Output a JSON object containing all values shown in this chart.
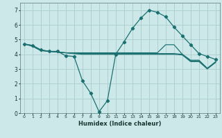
{
  "xlabel": "Humidex (Indice chaleur)",
  "xlim": [
    -0.5,
    23.5
  ],
  "ylim": [
    0,
    7.5
  ],
  "xticks": [
    0,
    1,
    2,
    3,
    4,
    5,
    6,
    7,
    8,
    9,
    10,
    11,
    12,
    13,
    14,
    15,
    16,
    17,
    18,
    19,
    20,
    21,
    22,
    23
  ],
  "yticks": [
    0,
    1,
    2,
    3,
    4,
    5,
    6,
    7
  ],
  "bg_color": "#cce8e8",
  "grid_color": "#aacccc",
  "line_color": "#1a7070",
  "line1_x": [
    0,
    1,
    2,
    3,
    4,
    5,
    6,
    7,
    8,
    9,
    10,
    11,
    12,
    13,
    14,
    15,
    16,
    17,
    18,
    19,
    20,
    21,
    22,
    23
  ],
  "line1_y": [
    4.7,
    4.6,
    4.3,
    4.2,
    4.2,
    3.9,
    3.85,
    2.2,
    1.35,
    0.1,
    0.85,
    4.0,
    4.85,
    5.75,
    6.45,
    7.0,
    6.85,
    6.55,
    5.85,
    5.25,
    4.65,
    4.05,
    3.85,
    3.65
  ],
  "line2_x": [
    0,
    1,
    2,
    3,
    4,
    5,
    6,
    7,
    8,
    9,
    10,
    11,
    12,
    13,
    14,
    15,
    16,
    17,
    18,
    19,
    20,
    21,
    22,
    23
  ],
  "line2_y": [
    4.7,
    4.6,
    4.3,
    4.2,
    4.15,
    4.1,
    4.1,
    4.1,
    4.1,
    4.1,
    4.1,
    4.1,
    4.1,
    4.1,
    4.1,
    4.1,
    4.1,
    4.65,
    4.65,
    4.0,
    3.6,
    3.6,
    3.05,
    3.5
  ],
  "line3_x": [
    0,
    1,
    2,
    3,
    4,
    5,
    6,
    7,
    8,
    9,
    10,
    11,
    12,
    13,
    14,
    15,
    16,
    17,
    18,
    19,
    20,
    21,
    22,
    23
  ],
  "line3_y": [
    4.7,
    4.55,
    4.25,
    4.2,
    4.15,
    4.1,
    4.05,
    4.05,
    4.05,
    4.05,
    4.05,
    4.05,
    4.05,
    4.05,
    4.05,
    4.05,
    4.05,
    4.05,
    4.05,
    4.0,
    3.55,
    3.55,
    3.05,
    3.45
  ],
  "line4_x": [
    0,
    1,
    2,
    3,
    4,
    5,
    6,
    7,
    8,
    9,
    10,
    11,
    12,
    13,
    14,
    15,
    16,
    17,
    18,
    19,
    20,
    21,
    22,
    23
  ],
  "line4_y": [
    4.7,
    4.55,
    4.25,
    4.2,
    4.15,
    4.1,
    4.05,
    4.0,
    4.0,
    4.0,
    4.0,
    4.0,
    4.0,
    4.0,
    4.0,
    4.0,
    4.0,
    4.0,
    4.0,
    3.95,
    3.5,
    3.5,
    3.0,
    3.45
  ]
}
